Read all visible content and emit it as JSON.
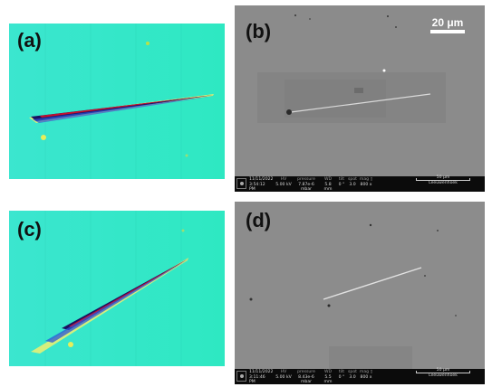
{
  "panels": {
    "a": {
      "label": "(a)"
    },
    "b": {
      "label": "(b)",
      "scale_bar": "20 μm",
      "info": {
        "date": "11/11/2022",
        "time": "3:54:12 PM",
        "hv_h": "HV",
        "hv": "5.00 kV",
        "pressure_h": "pressure",
        "pressure": "7.87e-6 mbar",
        "wd_h": "WD",
        "wd": "5.8 mm",
        "tilt_h": "tilt",
        "tilt": "0 °",
        "spot_h": "spot",
        "spot": "3.0",
        "mag_h": "mag ▯",
        "mag": "800 x",
        "scale": "50 µm",
        "operator": "Leeuwenhoek"
      }
    },
    "c": {
      "label": "(c)"
    },
    "d": {
      "label": "(d)",
      "info": {
        "date": "11/11/2022",
        "time": "3:11:46 PM",
        "hv_h": "HV",
        "hv": "5.00 kV",
        "pressure_h": "pressure",
        "pressure": "8.43e-6 mbar",
        "wd_h": "WD",
        "wd": "5.5 mm",
        "tilt_h": "tilt",
        "tilt": "0 °",
        "spot_h": "spot",
        "spot": "3.0",
        "mag_h": "mag ▯",
        "mag": "800 x",
        "scale": "50 µm",
        "operator": "Leeuwenhoek"
      }
    }
  },
  "colors": {
    "height_map_bg": "#2ee8c6",
    "sem_bg": "#8a8a8a",
    "info_bar": "#0b0b0b"
  }
}
